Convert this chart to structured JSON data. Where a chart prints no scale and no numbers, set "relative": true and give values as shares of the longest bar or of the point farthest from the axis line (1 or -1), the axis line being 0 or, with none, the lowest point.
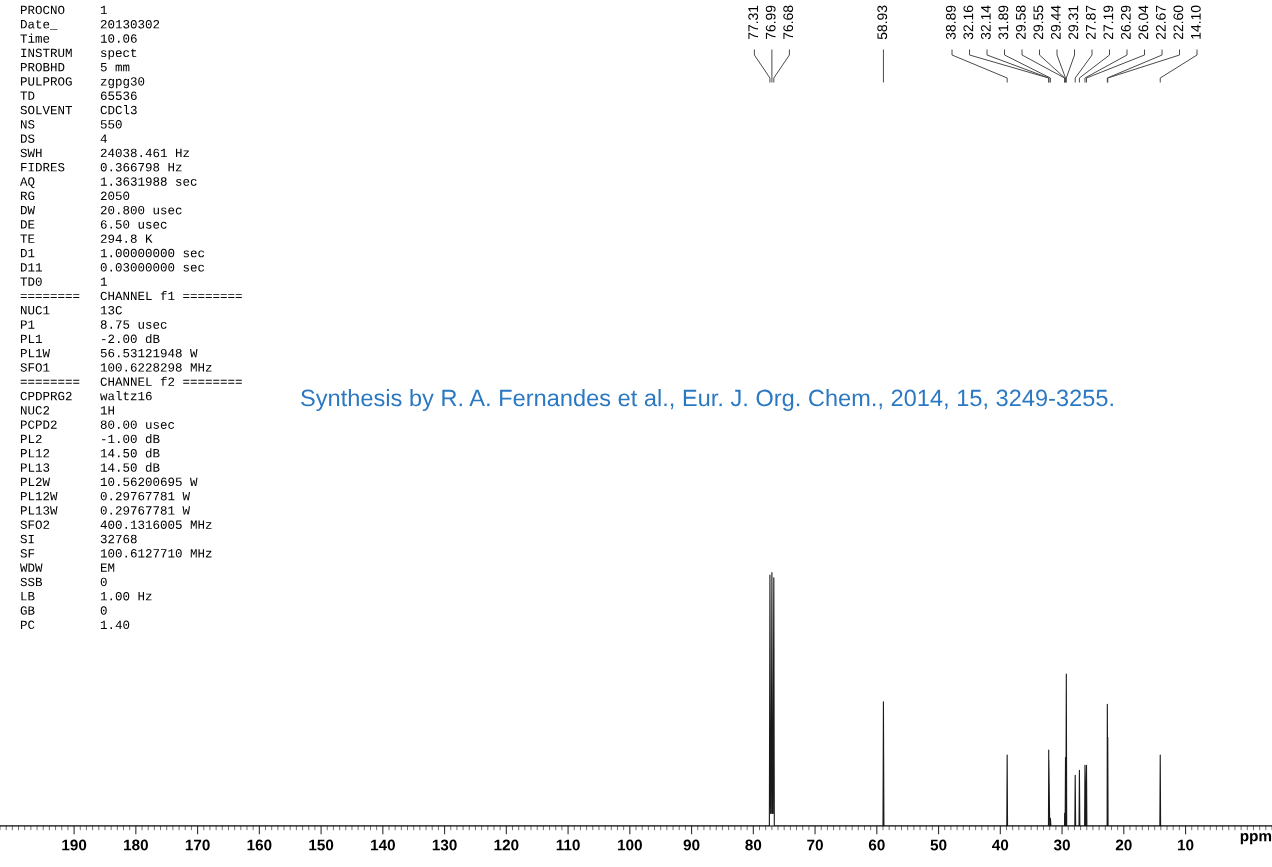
{
  "chart_data": {
    "type": "line",
    "title": "Synthesis by R. A. Fernandes et al., Eur. J. Org. Chem., 2014, 15, 3249-3255.",
    "xlabel": "ppm",
    "relative": true,
    "xlim": [
      202,
      -4
    ],
    "xticks": [
      190,
      180,
      170,
      160,
      150,
      140,
      130,
      120,
      110,
      100,
      90,
      80,
      70,
      60,
      50,
      40,
      30,
      20,
      10
    ],
    "grid": false,
    "legend": false,
    "marker": "none",
    "line_style": "solid",
    "series": [
      {
        "color": "#1a1a1a",
        "x": [
          202,
          77.4,
          77.31,
          77.2,
          77.1,
          76.99,
          76.9,
          76.8,
          76.68,
          76.6,
          59.0,
          58.93,
          58.85,
          38.95,
          38.89,
          38.83,
          32.2,
          32.16,
          32.15,
          32.14,
          32.0,
          31.89,
          31.8,
          29.6,
          29.58,
          29.565,
          29.55,
          29.5,
          29.44,
          29.38,
          29.31,
          29.25,
          27.93,
          27.87,
          27.8,
          27.25,
          27.19,
          27.12,
          26.35,
          26.29,
          26.17,
          26.04,
          25.98,
          22.7,
          22.67,
          22.64,
          22.6,
          22.55,
          14.16,
          14.1,
          14.04,
          -4
        ],
        "values": [
          0,
          0,
          0.99,
          0.05,
          0.05,
          1.0,
          0.05,
          0.05,
          0.98,
          0,
          0,
          0.49,
          0,
          0,
          0.28,
          0,
          0,
          0.3,
          0.2,
          0.26,
          0,
          0.03,
          0,
          0,
          0.05,
          0.03,
          0.05,
          0,
          0.27,
          0,
          0.6,
          0,
          0,
          0.2,
          0,
          0,
          0.22,
          0,
          0,
          0.24,
          0,
          0.24,
          0,
          0,
          0.48,
          0.3,
          0.35,
          0,
          0,
          0.28,
          0,
          0
        ]
      }
    ],
    "annotations": [
      "77.31",
      "76.99",
      "76.68",
      "58.93",
      "38.89",
      "32.16",
      "32.14",
      "31.89",
      "29.58",
      "29.55",
      "29.44",
      "29.31",
      "27.87",
      "27.19",
      "26.29",
      "26.04",
      "22.67",
      "22.60",
      "14.10",
      "PROCNO 1",
      "Date_ 20130302",
      "Time 10.06",
      "INSTRUM spect",
      "PROBHD 5 mm",
      "PULPROG zgpg30",
      "TD 65536",
      "SOLVENT CDCl3",
      "NS 550",
      "DS 4",
      "SWH 24038.461 Hz",
      "FIDRES 0.366798 Hz",
      "AQ 1.3631988 sec",
      "RG 2050",
      "DW 20.800 usec",
      "DE 6.50 usec",
      "TE 294.8 K",
      "D1 1.00000000 sec",
      "D11 0.03000000 sec",
      "TD0 1",
      "======== CHANNEL f1 ========",
      "NUC1 13C",
      "P1 8.75 usec",
      "PL1 -2.00 dB",
      "PL1W 56.53121948 W",
      "SFO1 100.6228298 MHz",
      "======== CHANNEL f2 ========",
      "CPDPRG2 waltz16",
      "NUC2 1H",
      "PCPD2 80.00 usec",
      "PL2 -1.00 dB",
      "PL12 14.50 dB",
      "PL13 14.50 dB",
      "PL2W 10.56200695 W",
      "PL12W 0.29767781 W",
      "PL13W 0.29767781 W",
      "SFO2 400.1316005 MHz",
      "SI 32768",
      "SF 100.6127710 MHz",
      "WDW EM",
      "SSB 0",
      "LB 1.00 Hz",
      "GB 0",
      "PC 1.40"
    ]
  }
}
